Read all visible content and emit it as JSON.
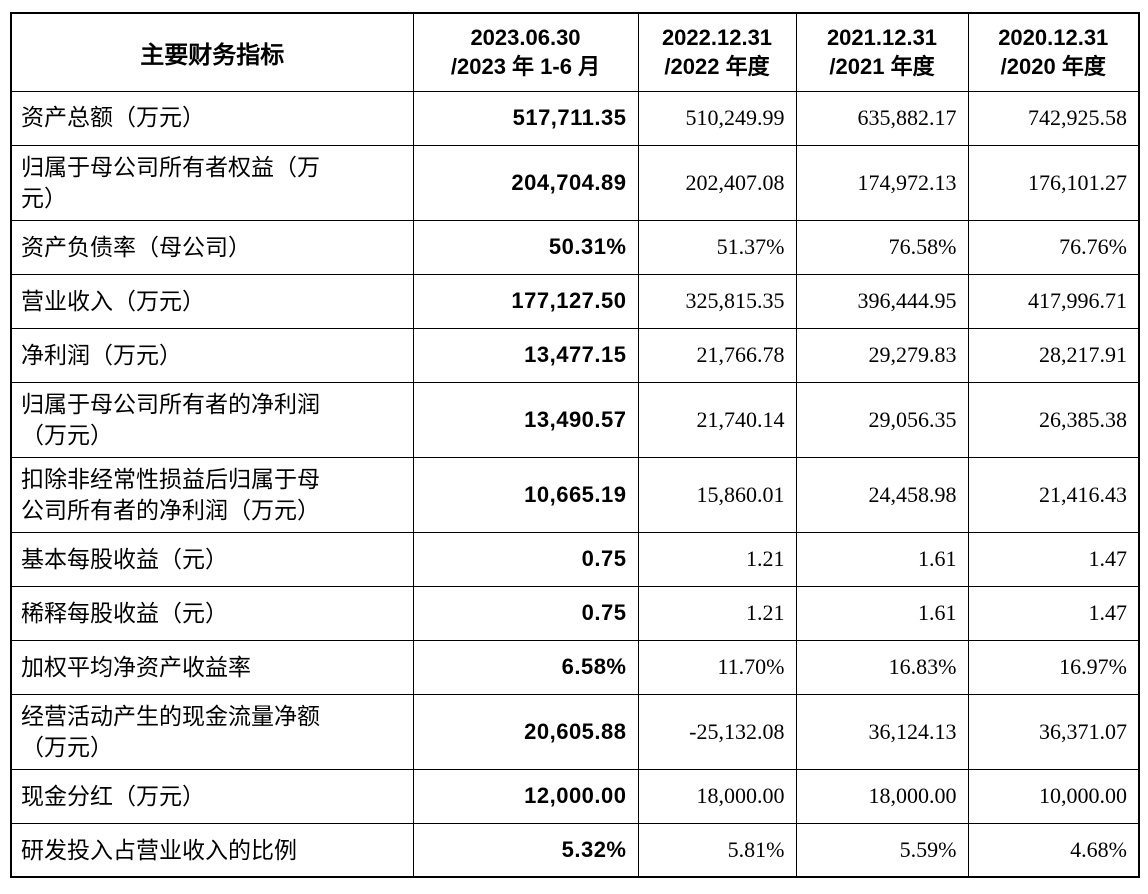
{
  "document": {
    "header_label": "主要财务指标",
    "columns": [
      {
        "line1": "2023.06.30",
        "line2": "/2023 年 1-6 月"
      },
      {
        "line1": "2022.12.31",
        "line2": "/2022 年度"
      },
      {
        "line1": "2021.12.31",
        "line2": "/2021 年度"
      },
      {
        "line1": "2020.12.31",
        "line2": "/2020 年度"
      }
    ],
    "rows": [
      {
        "label": "资产总额（万元）",
        "values": [
          "517,711.35",
          "510,249.99",
          "635,882.17",
          "742,925.58"
        ]
      },
      {
        "label": "归属于母公司所有者权益（万\n元）",
        "values": [
          "204,704.89",
          "202,407.08",
          "174,972.13",
          "176,101.27"
        ]
      },
      {
        "label": "资产负债率（母公司）",
        "values": [
          "50.31%",
          "51.37%",
          "76.58%",
          "76.76%"
        ]
      },
      {
        "label": "营业收入（万元）",
        "values": [
          "177,127.50",
          "325,815.35",
          "396,444.95",
          "417,996.71"
        ]
      },
      {
        "label": "净利润（万元）",
        "values": [
          "13,477.15",
          "21,766.78",
          "29,279.83",
          "28,217.91"
        ]
      },
      {
        "label": "归属于母公司所有者的净利润\n（万元）",
        "values": [
          "13,490.57",
          "21,740.14",
          "29,056.35",
          "26,385.38"
        ]
      },
      {
        "label": "扣除非经常性损益后归属于母\n公司所有者的净利润（万元）",
        "values": [
          "10,665.19",
          "15,860.01",
          "24,458.98",
          "21,416.43"
        ]
      },
      {
        "label": "基本每股收益（元）",
        "values": [
          "0.75",
          "1.21",
          "1.61",
          "1.47"
        ]
      },
      {
        "label": "稀释每股收益（元）",
        "values": [
          "0.75",
          "1.21",
          "1.61",
          "1.47"
        ]
      },
      {
        "label": "加权平均净资产收益率",
        "values": [
          "6.58%",
          "11.70%",
          "16.83%",
          "16.97%"
        ]
      },
      {
        "label": "经营活动产生的现金流量净额\n（万元）",
        "values": [
          "20,605.88",
          "-25,132.08",
          "36,124.13",
          "36,371.07"
        ]
      },
      {
        "label": "现金分红（万元）",
        "values": [
          "12,000.00",
          "18,000.00",
          "18,000.00",
          "10,000.00"
        ]
      },
      {
        "label": "研发投入占营业收入的比例",
        "values": [
          "5.32%",
          "5.81%",
          "5.59%",
          "4.68%"
        ]
      }
    ]
  },
  "colors": {
    "border": "#000000",
    "text": "#000000",
    "background": "#ffffff"
  }
}
